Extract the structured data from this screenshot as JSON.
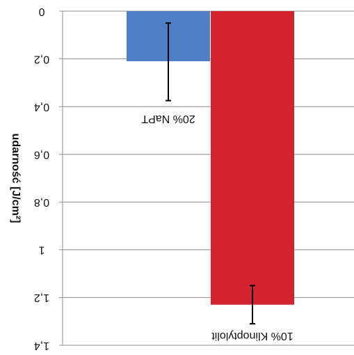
{
  "chart_data": {
    "type": "bar",
    "title": "",
    "xlabel": "",
    "ylabel": "udarność [J/cm²]",
    "orientation": "mirrored (rendered upside-down and left-right reversed)",
    "y_axis": "inverted",
    "ylim": [
      0,
      1.4
    ],
    "ytick_labels": [
      "0",
      "0,2",
      "0,4",
      "0,6",
      "0,8",
      "1",
      "1,2",
      "1,4"
    ],
    "ytick_values": [
      0,
      0.2,
      0.4,
      0.6,
      0.8,
      1.0,
      1.2,
      1.4
    ],
    "grid": true,
    "legend": "none",
    "categories": [
      "20% NaPT",
      "10% Klinoptylolit"
    ],
    "values": [
      0.21,
      1.23
    ],
    "error_low": [
      0.05,
      1.15
    ],
    "error_high": [
      0.375,
      1.31
    ],
    "colors": [
      "#4f7ec4",
      "#d32230"
    ]
  }
}
